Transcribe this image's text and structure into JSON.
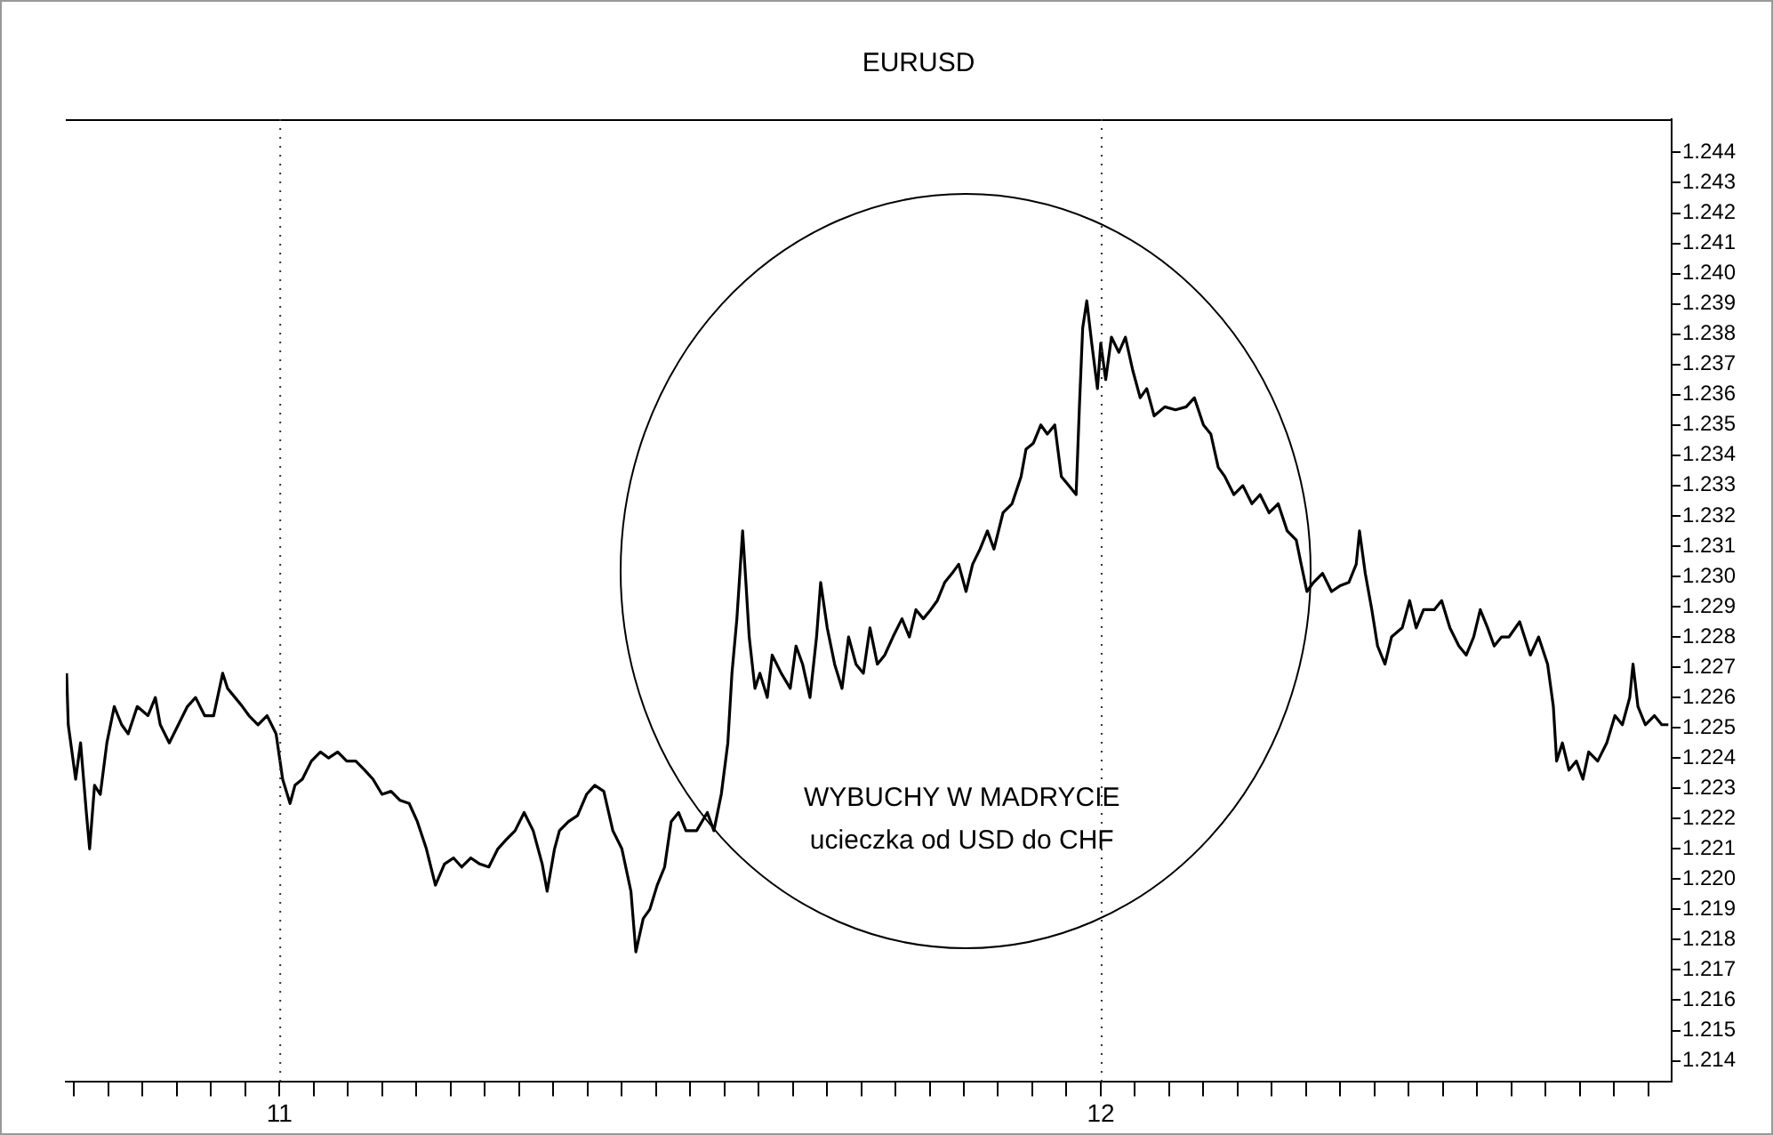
{
  "chart_data": {
    "type": "line",
    "title": "EURUSD",
    "annotations": [
      "WYBUCHY W MADRYCIE",
      "ucieczka od USD do CHF"
    ],
    "x": [
      10.741,
      10.743,
      10.752,
      10.758,
      10.765,
      10.769,
      10.775,
      10.782,
      10.79,
      10.799,
      10.808,
      10.816,
      10.827,
      10.84,
      10.849,
      10.855,
      10.866,
      10.877,
      10.888,
      10.898,
      10.909,
      10.92,
      10.931,
      10.937,
      10.946,
      10.955,
      10.963,
      10.974,
      10.985,
      10.996,
      11.004,
      11.013,
      11.019,
      11.028,
      11.039,
      11.05,
      11.06,
      11.071,
      11.082,
      11.093,
      11.104,
      11.114,
      11.125,
      11.136,
      11.147,
      11.158,
      11.168,
      11.179,
      11.19,
      11.201,
      11.212,
      11.222,
      11.233,
      11.244,
      11.255,
      11.266,
      11.276,
      11.287,
      11.298,
      11.309,
      11.32,
      11.326,
      11.335,
      11.341,
      11.352,
      11.363,
      11.374,
      11.384,
      11.395,
      11.406,
      11.417,
      11.428,
      11.434,
      11.443,
      11.451,
      11.46,
      11.469,
      11.477,
      11.486,
      11.495,
      11.508,
      11.521,
      11.529,
      11.538,
      11.546,
      11.551,
      11.557,
      11.564,
      11.568,
      11.572,
      11.579,
      11.585,
      11.594,
      11.6,
      11.611,
      11.622,
      11.629,
      11.637,
      11.646,
      11.654,
      11.659,
      11.667,
      11.676,
      11.685,
      11.693,
      11.702,
      11.711,
      11.719,
      11.728,
      11.737,
      11.747,
      11.758,
      11.767,
      11.775,
      11.784,
      11.793,
      11.801,
      11.81,
      11.819,
      11.827,
      11.836,
      11.844,
      11.853,
      11.862,
      11.87,
      11.881,
      11.892,
      11.903,
      11.909,
      11.918,
      11.927,
      11.935,
      11.944,
      11.952,
      11.961,
      11.97,
      11.974,
      11.978,
      11.983,
      11.989,
      11.996,
      12.0,
      12.006,
      12.013,
      12.022,
      12.03,
      12.039,
      12.048,
      12.056,
      12.065,
      12.078,
      12.091,
      12.104,
      12.114,
      12.125,
      12.134,
      12.143,
      12.151,
      12.162,
      12.173,
      12.184,
      12.194,
      12.205,
      12.216,
      12.227,
      12.238,
      12.244,
      12.251,
      12.259,
      12.27,
      12.281,
      12.292,
      12.302,
      12.311,
      12.315,
      12.322,
      12.33,
      12.337,
      12.346,
      12.354,
      12.367,
      12.376,
      12.384,
      12.393,
      12.406,
      12.415,
      12.425,
      12.436,
      12.445,
      12.454,
      12.462,
      12.471,
      12.479,
      12.488,
      12.497,
      12.51,
      12.523,
      12.533,
      12.544,
      12.551,
      12.555,
      12.562,
      12.57,
      12.579,
      12.587,
      12.594,
      12.605,
      12.616,
      12.626,
      12.635,
      12.644,
      12.648,
      12.654,
      12.663,
      12.674,
      12.683,
      12.691
    ],
    "series": [
      {
        "color": "#000000",
        "values": [
          1.2268,
          1.2251,
          1.2233,
          1.2245,
          1.2222,
          1.221,
          1.2231,
          1.2228,
          1.2245,
          1.2257,
          1.2251,
          1.2248,
          1.2257,
          1.2254,
          1.226,
          1.2251,
          1.2245,
          1.2251,
          1.2257,
          1.226,
          1.2254,
          1.2254,
          1.2268,
          1.2263,
          1.226,
          1.2257,
          1.2254,
          1.2251,
          1.2254,
          1.2248,
          1.2233,
          1.2225,
          1.2231,
          1.2233,
          1.2239,
          1.2242,
          1.224,
          1.2242,
          1.2239,
          1.2239,
          1.2236,
          1.2233,
          1.2228,
          1.2229,
          1.2226,
          1.2225,
          1.2219,
          1.221,
          1.2198,
          1.2205,
          1.2207,
          1.2204,
          1.2207,
          1.2205,
          1.2204,
          1.221,
          1.2213,
          1.2216,
          1.2222,
          1.2216,
          1.2205,
          1.2196,
          1.221,
          1.2216,
          1.2219,
          1.2221,
          1.2228,
          1.2231,
          1.2229,
          1.2216,
          1.221,
          1.2196,
          1.2176,
          1.2187,
          1.219,
          1.2198,
          1.2204,
          1.2219,
          1.2222,
          1.2216,
          1.2216,
          1.2222,
          1.2216,
          1.2228,
          1.2245,
          1.2268,
          1.2286,
          1.2315,
          1.2298,
          1.228,
          1.2263,
          1.2268,
          1.226,
          1.2274,
          1.2268,
          1.2263,
          1.2277,
          1.2271,
          1.226,
          1.228,
          1.2298,
          1.2283,
          1.2271,
          1.2263,
          1.228,
          1.2271,
          1.2268,
          1.2283,
          1.2271,
          1.2274,
          1.228,
          1.2286,
          1.228,
          1.2289,
          1.2286,
          1.2289,
          1.2292,
          1.2298,
          1.2301,
          1.2304,
          1.2295,
          1.2304,
          1.2309,
          1.2315,
          1.2309,
          1.2321,
          1.2324,
          1.2333,
          1.2342,
          1.2344,
          1.235,
          1.2347,
          1.235,
          1.2333,
          1.233,
          1.2327,
          1.2356,
          1.2382,
          1.2391,
          1.2377,
          1.2362,
          1.2377,
          1.2365,
          1.2379,
          1.2374,
          1.2379,
          1.2368,
          1.2359,
          1.2362,
          1.2353,
          1.2356,
          1.2355,
          1.2356,
          1.2359,
          1.235,
          1.2347,
          1.2336,
          1.2333,
          1.2327,
          1.233,
          1.2324,
          1.2327,
          1.2321,
          1.2324,
          1.2315,
          1.2312,
          1.2304,
          1.2295,
          1.2298,
          1.2301,
          1.2295,
          1.2297,
          1.2298,
          1.2304,
          1.2315,
          1.2301,
          1.2289,
          1.2277,
          1.2271,
          1.228,
          1.2283,
          1.2292,
          1.2283,
          1.2289,
          1.2289,
          1.2292,
          1.2283,
          1.2277,
          1.2274,
          1.228,
          1.2289,
          1.2283,
          1.2277,
          1.228,
          1.228,
          1.2285,
          1.2274,
          1.228,
          1.2271,
          1.2257,
          1.2239,
          1.2245,
          1.2236,
          1.2239,
          1.2233,
          1.2242,
          1.2239,
          1.2245,
          1.2254,
          1.2251,
          1.226,
          1.2271,
          1.2257,
          1.2251,
          1.2254,
          1.2251,
          1.2251
        ]
      }
    ],
    "xlim": [
      10.74,
      12.695
    ],
    "xticks": [
      {
        "value": 10.75,
        "label": null
      },
      {
        "value": 10.7917,
        "label": null
      },
      {
        "value": 10.8333,
        "label": null
      },
      {
        "value": 10.875,
        "label": null
      },
      {
        "value": 10.9167,
        "label": null
      },
      {
        "value": 10.9583,
        "label": null
      },
      {
        "value": 11,
        "label": "11"
      },
      {
        "value": 11.0417,
        "label": null
      },
      {
        "value": 11.0833,
        "label": null
      },
      {
        "value": 11.125,
        "label": null
      },
      {
        "value": 11.1667,
        "label": null
      },
      {
        "value": 11.2083,
        "label": null
      },
      {
        "value": 11.25,
        "label": null
      },
      {
        "value": 11.2917,
        "label": null
      },
      {
        "value": 11.3333,
        "label": null
      },
      {
        "value": 11.375,
        "label": null
      },
      {
        "value": 11.4167,
        "label": null
      },
      {
        "value": 11.4583,
        "label": null
      },
      {
        "value": 11.5,
        "label": null
      },
      {
        "value": 11.5417,
        "label": null
      },
      {
        "value": 11.5833,
        "label": null
      },
      {
        "value": 11.625,
        "label": null
      },
      {
        "value": 11.6667,
        "label": null
      },
      {
        "value": 11.7083,
        "label": null
      },
      {
        "value": 11.75,
        "label": null
      },
      {
        "value": 11.7917,
        "label": null
      },
      {
        "value": 11.8333,
        "label": null
      },
      {
        "value": 11.875,
        "label": null
      },
      {
        "value": 11.9167,
        "label": null
      },
      {
        "value": 11.9583,
        "label": null
      },
      {
        "value": 12,
        "label": "12"
      },
      {
        "value": 12.0417,
        "label": null
      },
      {
        "value": 12.0833,
        "label": null
      },
      {
        "value": 12.125,
        "label": null
      },
      {
        "value": 12.1667,
        "label": null
      },
      {
        "value": 12.2083,
        "label": null
      },
      {
        "value": 12.25,
        "label": null
      },
      {
        "value": 12.2917,
        "label": null
      },
      {
        "value": 12.3333,
        "label": null
      },
      {
        "value": 12.375,
        "label": null
      },
      {
        "value": 12.4167,
        "label": null
      },
      {
        "value": 12.4583,
        "label": null
      },
      {
        "value": 12.5,
        "label": null
      },
      {
        "value": 12.5417,
        "label": null
      },
      {
        "value": 12.5833,
        "label": null
      },
      {
        "value": 12.625,
        "label": null
      },
      {
        "value": 12.6667,
        "label": null
      }
    ],
    "ylim": [
      1.2133,
      1.2451
    ],
    "yticks": [
      1.214,
      1.215,
      1.216,
      1.217,
      1.218,
      1.219,
      {
        "value": 1.22,
        "label": "1.220"
      },
      1.221,
      1.222,
      1.223,
      1.224,
      1.225,
      1.226,
      1.227,
      1.228,
      1.229,
      {
        "value": 1.23,
        "label": "1.230"
      },
      1.231,
      1.232,
      1.233,
      1.234,
      1.235,
      1.236,
      1.237,
      1.238,
      1.239,
      {
        "value": 1.24,
        "label": "1.240"
      },
      1.241,
      1.242,
      1.243,
      1.244
    ],
    "ref_lines": [
      {
        "axis": "x",
        "value": 11,
        "color": "#333333",
        "line_style": "dotted"
      },
      {
        "axis": "x",
        "value": 12,
        "color": "#333333",
        "line_style": "dotted"
      }
    ],
    "grid": false,
    "legend": false,
    "marker": "none",
    "line_style": "solid"
  }
}
